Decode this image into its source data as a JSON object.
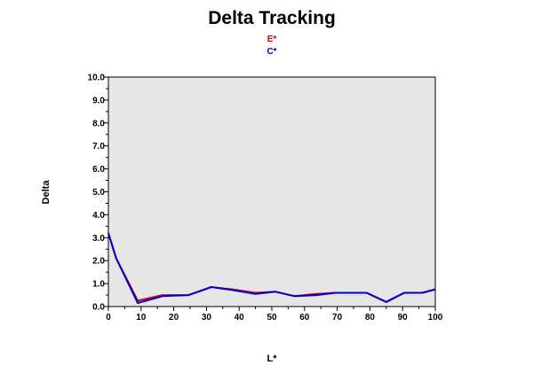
{
  "chart_data": {
    "type": "line",
    "title": "Delta Tracking",
    "xlabel": "L*",
    "ylabel": "Delta",
    "xlim": [
      0,
      100
    ],
    "ylim": [
      0,
      10
    ],
    "x_ticks": [
      "0",
      "10",
      "20",
      "30",
      "40",
      "50",
      "60",
      "70",
      "80",
      "90",
      "100"
    ],
    "y_ticks": [
      "0.0",
      "1.0",
      "2.0",
      "3.0",
      "4.0",
      "5.0",
      "6.0",
      "7.0",
      "8.0",
      "9.0",
      "10.0"
    ],
    "grid": false,
    "plot_background": "#e6e6e6",
    "legend_position": "top-center",
    "series": [
      {
        "name": "E*",
        "color": "#cc0000",
        "x": [
          0,
          2.4,
          9,
          16.5,
          24.5,
          31.5,
          38,
          45,
          51,
          57,
          63.5,
          69.5,
          79,
          85,
          90.5,
          96,
          100
        ],
        "y": [
          3.2,
          2.1,
          0.25,
          0.5,
          0.5,
          0.85,
          0.75,
          0.6,
          0.65,
          0.45,
          0.55,
          0.6,
          0.6,
          0.2,
          0.6,
          0.6,
          0.75
        ]
      },
      {
        "name": "C*",
        "color": "#0000cc",
        "x": [
          0,
          2.4,
          9,
          16.5,
          24.5,
          31.5,
          38,
          45,
          51,
          57,
          63.5,
          69.5,
          79,
          85,
          90.5,
          96,
          100
        ],
        "y": [
          3.2,
          2.1,
          0.15,
          0.45,
          0.5,
          0.85,
          0.72,
          0.55,
          0.65,
          0.45,
          0.5,
          0.6,
          0.6,
          0.2,
          0.6,
          0.6,
          0.75
        ]
      }
    ]
  }
}
